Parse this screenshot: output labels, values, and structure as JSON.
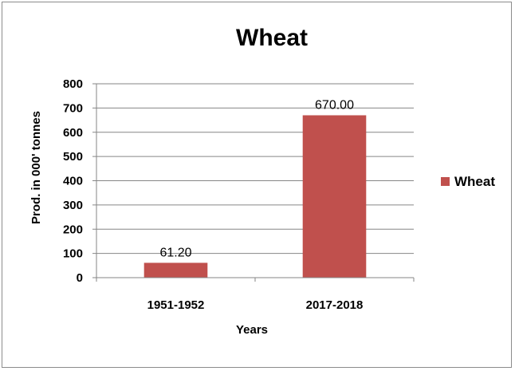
{
  "chart_data": {
    "type": "bar",
    "title": "Wheat",
    "xlabel": "Years",
    "ylabel": "Prod. in 000' tonnes",
    "categories": [
      "1951-1952",
      "2017-2018"
    ],
    "series": [
      {
        "name": "Wheat",
        "values": [
          61.2,
          670.0
        ],
        "data_labels": [
          "61.20",
          "670.00"
        ],
        "color": "#c0504d"
      }
    ],
    "ylim": [
      0,
      800
    ],
    "yticks": [
      "0",
      "100",
      "200",
      "300",
      "400",
      "500",
      "600",
      "700",
      "800"
    ],
    "grid": true,
    "legend_position": "right"
  }
}
